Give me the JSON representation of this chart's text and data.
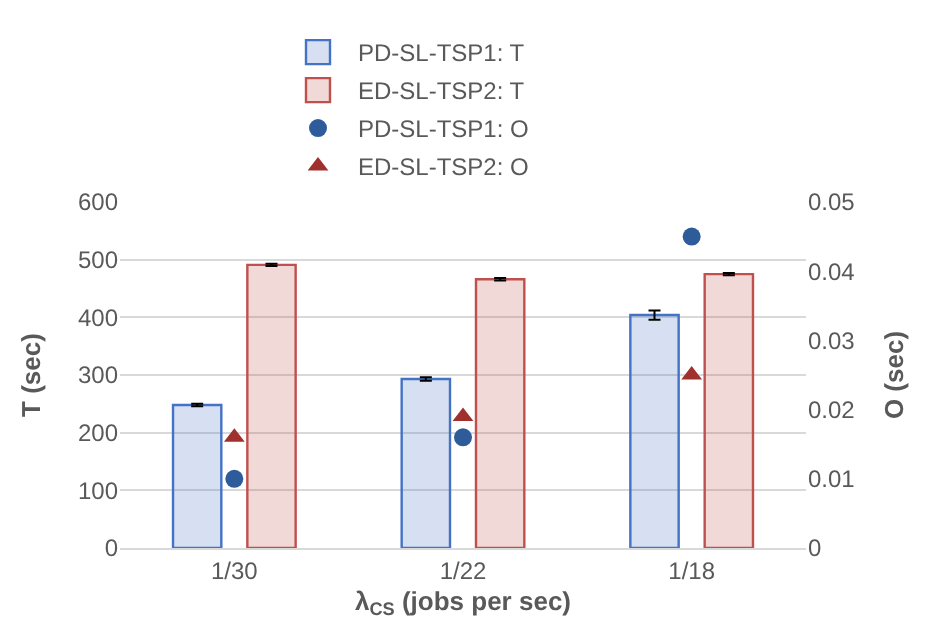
{
  "chart_data": {
    "type": "bar",
    "xlabel": "λ$_{CS}$ (jobs per sec)",
    "ylabel": "T (sec)",
    "y2label": "O (sec)",
    "categories": [
      "1/30",
      "1/22",
      "1/18"
    ],
    "series": [
      {
        "name": "PD-SL-TSP1: T",
        "color": "#4472c4",
        "values": [
          248,
          293,
          404
        ],
        "errors": [
          2,
          3,
          8
        ]
      },
      {
        "name": "ED-SL-TSP2: T",
        "color": "#c0504d",
        "values": [
          491,
          466,
          475
        ],
        "errors": [
          2,
          2,
          2
        ]
      },
      {
        "name": "PD-SL-TSP1: O",
        "type": "scatter",
        "axis": "y2",
        "marker": "circle",
        "color": "#2e5c9a",
        "values": [
          0.01,
          0.016,
          0.045
        ]
      },
      {
        "name": "ED-SL-TSP2: O",
        "type": "scatter",
        "axis": "y2",
        "marker": "triangle",
        "color": "#a0302d",
        "values": [
          0.016,
          0.019,
          0.025
        ]
      }
    ],
    "ylim": [
      0,
      600
    ],
    "yticks": [
      0,
      100,
      200,
      300,
      400,
      500,
      600
    ],
    "y2lim": [
      0,
      0.05
    ],
    "y2ticks": [
      0,
      0.01,
      0.02,
      0.03,
      0.04,
      0.05
    ],
    "grid": "y",
    "legend": "top"
  }
}
